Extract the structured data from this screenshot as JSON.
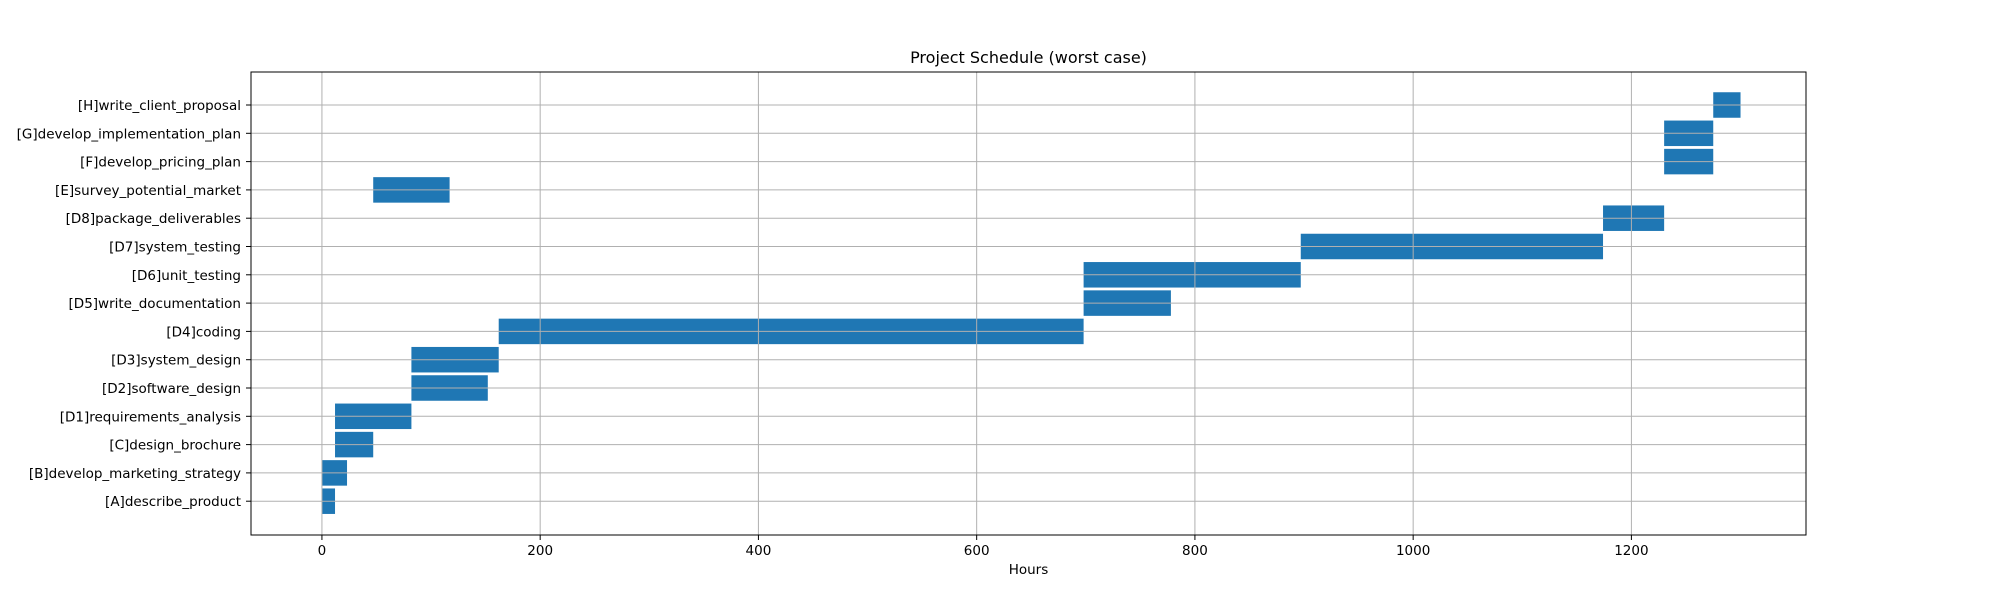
{
  "chart_data": {
    "type": "bar",
    "orientation": "horizontal-gantt",
    "title": "Project Schedule (worst case)",
    "xlabel": "Hours",
    "ylabel": "",
    "xlim": [
      -65,
      1360
    ],
    "xticks": [
      0,
      200,
      400,
      600,
      800,
      1000,
      1200
    ],
    "grid": true,
    "bar_color": "#1f77b4",
    "tasks": [
      {
        "label": "[A]describe_product",
        "start": 0,
        "end": 12
      },
      {
        "label": "[B]develop_marketing_strategy",
        "start": 0,
        "end": 23
      },
      {
        "label": "[C]design_brochure",
        "start": 12,
        "end": 47
      },
      {
        "label": "[D1]requirements_analysis",
        "start": 12,
        "end": 82
      },
      {
        "label": "[D2]software_design",
        "start": 82,
        "end": 152
      },
      {
        "label": "[D3]system_design",
        "start": 82,
        "end": 162
      },
      {
        "label": "[D4]coding",
        "start": 162,
        "end": 698
      },
      {
        "label": "[D5]write_documentation",
        "start": 698,
        "end": 778
      },
      {
        "label": "[D6]unit_testing",
        "start": 698,
        "end": 897
      },
      {
        "label": "[D7]system_testing",
        "start": 897,
        "end": 1174
      },
      {
        "label": "[D8]package_deliverables",
        "start": 1174,
        "end": 1230
      },
      {
        "label": "[E]survey_potential_market",
        "start": 47,
        "end": 117
      },
      {
        "label": "[F]develop_pricing_plan",
        "start": 1230,
        "end": 1275
      },
      {
        "label": "[G]develop_implementation_plan",
        "start": 1230,
        "end": 1275
      },
      {
        "label": "[H]write_client_proposal",
        "start": 1275,
        "end": 1300
      }
    ]
  }
}
